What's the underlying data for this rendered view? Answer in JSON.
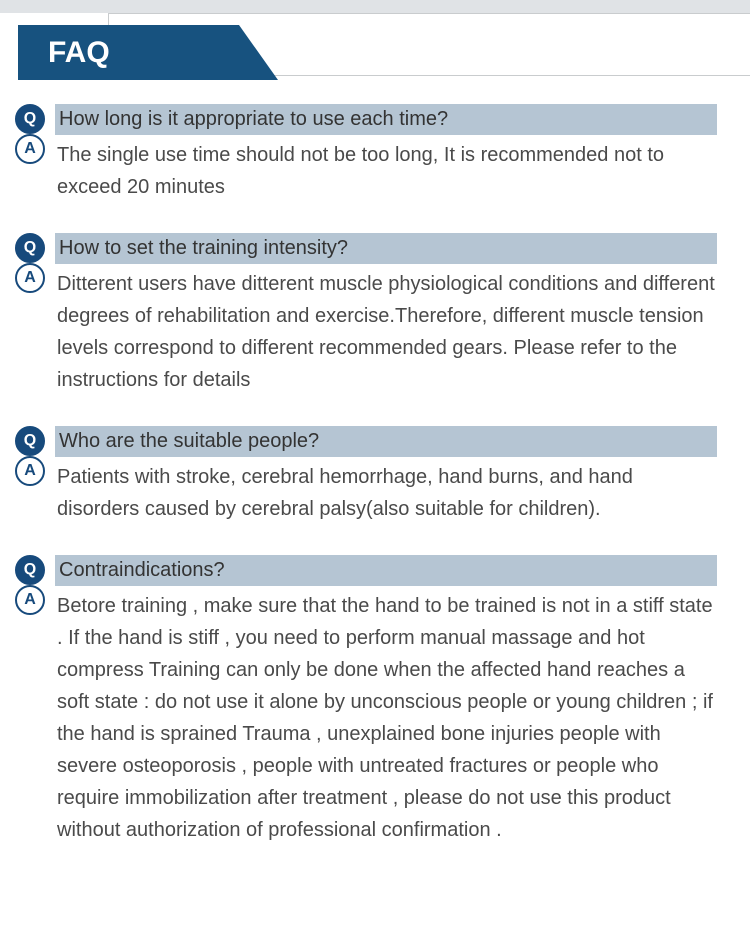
{
  "header": {
    "title": "FAQ",
    "tab_bg": "#17527f",
    "tab_fg": "#ffffff"
  },
  "badges": {
    "q_label": "Q",
    "a_label": "A",
    "q_bg": "#174a7c",
    "q_fg": "#ffffff",
    "a_bg": "#ffffff",
    "a_fg": "#174a7c"
  },
  "q_bar_bg": "#b5c5d3",
  "faq": [
    {
      "question": "How long is it appropriate to use each time?",
      "answer": "The single use time should not be too long, It is recommended not to exceed 20 minutes"
    },
    {
      "question": "How to set the training intensity?",
      "answer": "Ditterent users have ditterent muscle physiological conditions and different degrees of rehabilitation and exercise.Therefore, different muscle tension levels correspond to different recommended gears. Please refer to the instructions for details"
    },
    {
      "question": "Who are the suitable people?",
      "answer": "Patients with stroke, cerebral hemorrhage, hand burns, and hand disorders caused by cerebral palsy(also suitable for children)."
    },
    {
      "question": "Contraindications?",
      "answer": "Betore training , make sure that the hand to be trained is not in a stiff state . If the hand is stiff , you need to perform manual massage and hot compress Training can only be done when the affected hand reaches a soft state : do not use it alone by unconscious people or young children ; if the hand is sprained Trauma , unexplained bone injuries people with severe osteoporosis , people with untreated fractures or people who require immobilization after treatment , please do not use this product without authorization of professional confirmation ."
    }
  ]
}
